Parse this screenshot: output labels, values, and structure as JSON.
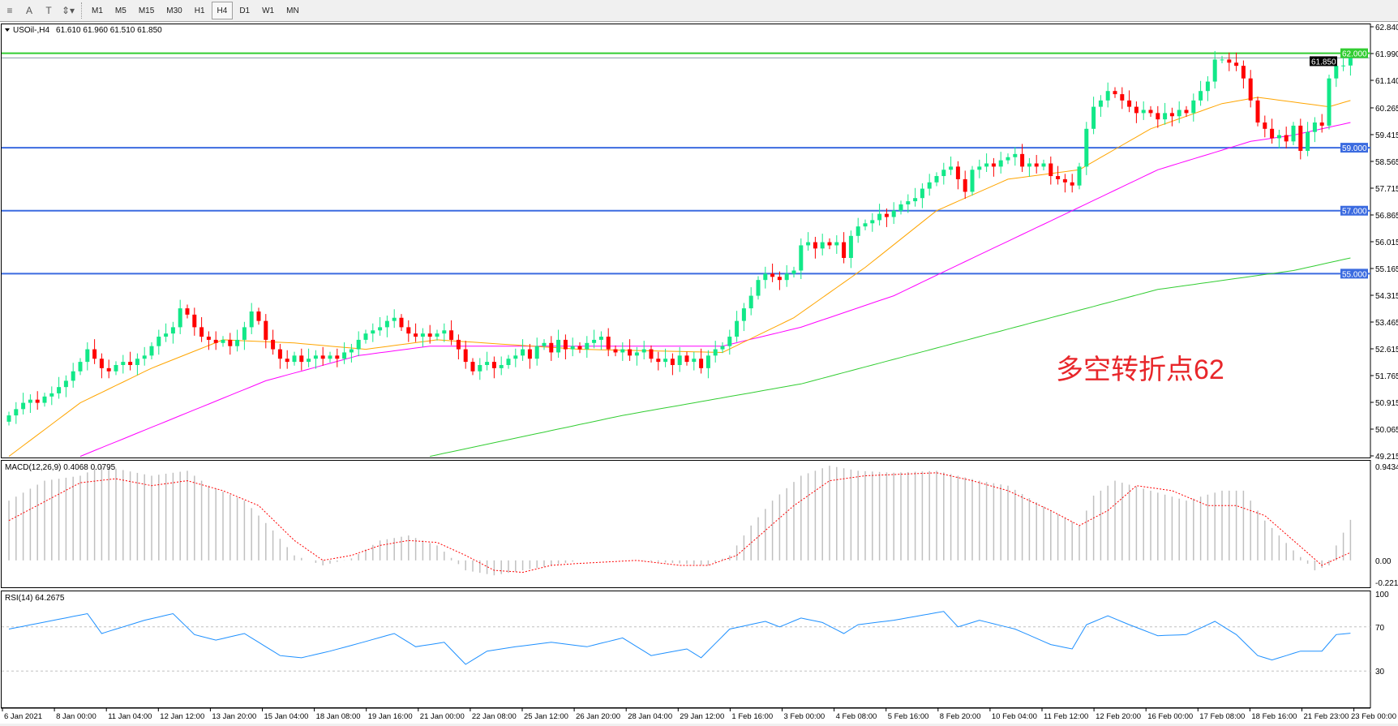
{
  "toolbar": {
    "tools": [
      {
        "name": "period-separator-icon",
        "glyph": "≡"
      },
      {
        "name": "text-tool-icon",
        "glyph": "A"
      },
      {
        "name": "text-label-icon",
        "glyph": "T"
      },
      {
        "name": "arrows-tool-icon",
        "glyph": "⇕▾"
      }
    ],
    "timeframes": [
      "M1",
      "M5",
      "M15",
      "M30",
      "H1",
      "H4",
      "D1",
      "W1",
      "MN"
    ],
    "active_timeframe": "H4"
  },
  "chart": {
    "symbol_label": "USOil-,H4",
    "ohlc": "61.610 61.960 61.510 61.850",
    "annotation": "多空转折点62",
    "colors": {
      "bull": "#12e888",
      "bear": "#ff0000",
      "level_green": "#32cd32",
      "level_blue": "#3b6be0",
      "ma_fast": "#ffa500",
      "ma_mid": "#ff00ff",
      "ma_slow": "#32cd32",
      "macd_signal": "#ff0000",
      "rsi": "#1e90ff"
    },
    "price_ticks": [
      "62.840",
      "61.990",
      "61.140",
      "60.265",
      "59.415",
      "58.565",
      "57.715",
      "56.865",
      "56.015",
      "55.165",
      "54.315",
      "53.465",
      "52.615",
      "51.765",
      "50.915",
      "50.065",
      "49.215"
    ],
    "levels": [
      {
        "price": 62.0,
        "label": "62.000",
        "type": "green"
      },
      {
        "price": 59.0,
        "label": "59.000",
        "type": "blue"
      },
      {
        "price": 57.0,
        "label": "57.000",
        "type": "blue"
      },
      {
        "price": 55.0,
        "label": "55.000",
        "type": "blue"
      }
    ],
    "current_price": {
      "price": 61.85,
      "label": "61.850"
    },
    "time_labels": [
      "6 Jan 2021",
      "8 Jan 00:00",
      "11 Jan 04:00",
      "12 Jan 12:00",
      "13 Jan 20:00",
      "15 Jan 04:00",
      "18 Jan 08:00",
      "19 Jan 16:00",
      "21 Jan 00:00",
      "22 Jan 08:00",
      "25 Jan 12:00",
      "26 Jan 20:00",
      "28 Jan 04:00",
      "29 Jan 12:00",
      "1 Feb 16:00",
      "3 Feb 00:00",
      "4 Feb 08:00",
      "5 Feb 16:00",
      "8 Feb 20:00",
      "10 Feb 04:00",
      "11 Feb 12:00",
      "12 Feb 20:00",
      "16 Feb 00:00",
      "17 Feb 08:00",
      "18 Feb 16:00",
      "21 Feb 23:00",
      "23 Feb 00:00"
    ]
  },
  "macd": {
    "label": "MACD(12,26,9) 0.4068 0.0795",
    "ticks": [
      "0.9434",
      "0.00",
      "-0.2213"
    ]
  },
  "rsi": {
    "label": "RSI(14) 64.2675",
    "ticks": [
      "100",
      "70",
      "30"
    ]
  },
  "chart_data": {
    "type": "candlestick",
    "ylim": [
      49.215,
      62.84
    ],
    "first_open": 50.3,
    "closes": [
      50.5,
      50.7,
      50.9,
      51.0,
      50.9,
      51.1,
      51.2,
      51.4,
      51.6,
      51.9,
      52.2,
      52.6,
      52.3,
      52.0,
      51.9,
      52.1,
      52.2,
      52.1,
      52.3,
      52.4,
      52.7,
      53.0,
      53.1,
      53.3,
      53.9,
      53.7,
      53.3,
      53.0,
      52.9,
      52.8,
      52.9,
      52.7,
      52.9,
      53.3,
      53.8,
      53.5,
      52.9,
      52.6,
      52.3,
      52.2,
      52.4,
      52.2,
      52.3,
      52.4,
      52.3,
      52.4,
      52.3,
      52.5,
      52.6,
      52.9,
      53.1,
      53.2,
      53.3,
      53.5,
      53.6,
      53.3,
      53.1,
      53.0,
      53.1,
      53.0,
      53.1,
      53.2,
      52.9,
      52.6,
      52.2,
      51.9,
      52.1,
      52.2,
      52.0,
      52.1,
      52.3,
      52.4,
      52.6,
      52.3,
      52.7,
      52.8,
      52.5,
      52.9,
      52.6,
      52.7,
      52.6,
      52.8,
      52.9,
      53.0,
      52.6,
      52.5,
      52.6,
      52.4,
      52.5,
      52.6,
      52.3,
      52.2,
      52.3,
      52.1,
      52.4,
      52.2,
      52.3,
      52.0,
      52.4,
      52.6,
      52.7,
      53.0,
      53.5,
      53.9,
      54.3,
      54.8,
      55.0,
      54.9,
      54.8,
      55.0,
      55.1,
      55.9,
      56.0,
      55.8,
      56.0,
      55.9,
      56.0,
      55.5,
      56.2,
      56.5,
      56.6,
      56.7,
      56.9,
      56.8,
      57.0,
      57.2,
      57.3,
      57.4,
      57.7,
      57.9,
      58.1,
      58.3,
      58.4,
      58.0,
      57.6,
      58.3,
      58.4,
      58.5,
      58.4,
      58.6,
      58.7,
      58.8,
      58.4,
      58.5,
      58.4,
      58.5,
      58.1,
      58.0,
      57.9,
      57.8,
      58.4,
      59.6,
      60.3,
      60.5,
      60.8,
      60.7,
      60.5,
      60.3,
      60.1,
      60.2,
      60.1,
      59.9,
      60.1,
      60.0,
      60.2,
      60.1,
      60.5,
      60.8,
      61.1,
      61.8,
      61.8,
      61.7,
      61.6,
      61.2,
      60.5,
      59.8,
      59.6,
      59.3,
      59.4,
      59.2,
      59.7,
      58.9,
      59.5,
      59.8,
      59.7,
      61.2,
      61.6,
      61.61,
      61.85
    ],
    "ma_fast": [
      [
        0,
        49.2
      ],
      [
        10,
        50.9
      ],
      [
        20,
        52.0
      ],
      [
        30,
        52.9
      ],
      [
        40,
        52.8
      ],
      [
        50,
        52.6
      ],
      [
        60,
        52.9
      ],
      [
        80,
        52.6
      ],
      [
        100,
        52.5
      ],
      [
        110,
        53.6
      ],
      [
        120,
        55.2
      ],
      [
        130,
        57.0
      ],
      [
        140,
        58.0
      ],
      [
        150,
        58.3
      ],
      [
        160,
        59.6
      ],
      [
        170,
        60.4
      ],
      [
        175,
        60.6
      ],
      [
        185,
        60.3
      ],
      [
        188,
        60.5
      ]
    ],
    "ma_mid": [
      [
        10,
        49.2
      ],
      [
        36,
        51.6
      ],
      [
        49,
        52.4
      ],
      [
        59,
        52.7
      ],
      [
        76,
        52.7
      ],
      [
        100,
        52.7
      ],
      [
        111,
        53.3
      ],
      [
        124,
        54.3
      ],
      [
        136,
        55.6
      ],
      [
        149,
        57.0
      ],
      [
        161,
        58.3
      ],
      [
        174,
        59.2
      ],
      [
        180,
        59.4
      ],
      [
        188,
        59.8
      ]
    ],
    "ma_slow": [
      [
        59,
        49.2
      ],
      [
        86,
        50.5
      ],
      [
        111,
        51.5
      ],
      [
        136,
        53.0
      ],
      [
        161,
        54.5
      ],
      [
        180,
        55.1
      ],
      [
        188,
        55.5
      ]
    ],
    "macd_hist": [
      [
        0,
        0.6
      ],
      [
        5,
        0.8
      ],
      [
        10,
        0.85
      ],
      [
        13,
        0.95
      ],
      [
        20,
        0.85
      ],
      [
        25,
        0.9
      ],
      [
        28,
        0.75
      ],
      [
        33,
        0.6
      ],
      [
        37,
        0.3
      ],
      [
        40,
        0.05
      ],
      [
        44,
        -0.05
      ],
      [
        48,
        0.02
      ],
      [
        52,
        0.2
      ],
      [
        56,
        0.25
      ],
      [
        60,
        0.15
      ],
      [
        64,
        -0.1
      ],
      [
        68,
        -0.15
      ],
      [
        72,
        -0.1
      ],
      [
        80,
        0.0
      ],
      [
        88,
        0.0
      ],
      [
        94,
        -0.03
      ],
      [
        98,
        -0.05
      ],
      [
        101,
        0.05
      ],
      [
        104,
        0.35
      ],
      [
        107,
        0.6
      ],
      [
        111,
        0.85
      ],
      [
        115,
        0.95
      ],
      [
        119,
        0.9
      ],
      [
        124,
        0.88
      ],
      [
        130,
        0.9
      ],
      [
        136,
        0.8
      ],
      [
        140,
        0.75
      ],
      [
        146,
        0.5
      ],
      [
        150,
        0.35
      ],
      [
        152,
        0.65
      ],
      [
        155,
        0.8
      ],
      [
        160,
        0.7
      ],
      [
        165,
        0.6
      ],
      [
        170,
        0.7
      ],
      [
        173,
        0.7
      ],
      [
        176,
        0.4
      ],
      [
        180,
        0.1
      ],
      [
        183,
        -0.1
      ],
      [
        185,
        -0.05
      ],
      [
        186,
        0.15
      ],
      [
        188,
        0.4068
      ]
    ],
    "macd_signal": [
      [
        0,
        0.4
      ],
      [
        10,
        0.78
      ],
      [
        15,
        0.82
      ],
      [
        20,
        0.75
      ],
      [
        25,
        0.8
      ],
      [
        30,
        0.7
      ],
      [
        35,
        0.55
      ],
      [
        40,
        0.2
      ],
      [
        44,
        0.0
      ],
      [
        48,
        0.05
      ],
      [
        52,
        0.15
      ],
      [
        56,
        0.2
      ],
      [
        60,
        0.18
      ],
      [
        64,
        0.05
      ],
      [
        68,
        -0.1
      ],
      [
        72,
        -0.12
      ],
      [
        76,
        -0.05
      ],
      [
        80,
        -0.03
      ],
      [
        88,
        0.0
      ],
      [
        94,
        -0.05
      ],
      [
        98,
        -0.05
      ],
      [
        102,
        0.05
      ],
      [
        106,
        0.3
      ],
      [
        110,
        0.55
      ],
      [
        115,
        0.8
      ],
      [
        120,
        0.85
      ],
      [
        130,
        0.88
      ],
      [
        135,
        0.8
      ],
      [
        140,
        0.7
      ],
      [
        146,
        0.5
      ],
      [
        150,
        0.35
      ],
      [
        154,
        0.5
      ],
      [
        158,
        0.75
      ],
      [
        163,
        0.7
      ],
      [
        168,
        0.55
      ],
      [
        172,
        0.55
      ],
      [
        176,
        0.45
      ],
      [
        180,
        0.2
      ],
      [
        184,
        -0.05
      ],
      [
        188,
        0.0795
      ]
    ],
    "macd_range": [
      -0.2213,
      0.9434
    ],
    "rsi": [
      [
        0,
        68
      ],
      [
        11,
        82
      ],
      [
        13,
        64
      ],
      [
        19,
        76
      ],
      [
        23,
        82
      ],
      [
        26,
        63
      ],
      [
        29,
        58
      ],
      [
        33,
        64
      ],
      [
        38,
        44
      ],
      [
        41,
        42
      ],
      [
        45,
        48
      ],
      [
        49,
        55
      ],
      [
        54,
        64
      ],
      [
        57,
        52
      ],
      [
        61,
        56
      ],
      [
        64,
        36
      ],
      [
        67,
        48
      ],
      [
        71,
        52
      ],
      [
        76,
        56
      ],
      [
        81,
        52
      ],
      [
        86,
        60
      ],
      [
        90,
        44
      ],
      [
        95,
        50
      ],
      [
        97,
        42
      ],
      [
        101,
        68
      ],
      [
        106,
        75
      ],
      [
        108,
        70
      ],
      [
        111,
        78
      ],
      [
        114,
        74
      ],
      [
        117,
        64
      ],
      [
        119,
        72
      ],
      [
        124,
        76
      ],
      [
        131,
        84
      ],
      [
        133,
        70
      ],
      [
        136,
        76
      ],
      [
        141,
        68
      ],
      [
        146,
        54
      ],
      [
        149,
        50
      ],
      [
        151,
        72
      ],
      [
        154,
        80
      ],
      [
        157,
        72
      ],
      [
        161,
        62
      ],
      [
        165,
        63
      ],
      [
        169,
        75
      ],
      [
        172,
        63
      ],
      [
        175,
        44
      ],
      [
        177,
        40
      ],
      [
        181,
        48
      ],
      [
        184,
        48
      ],
      [
        186,
        63
      ],
      [
        188,
        64.27
      ]
    ],
    "rsi_levels": [
      70,
      30
    ]
  }
}
